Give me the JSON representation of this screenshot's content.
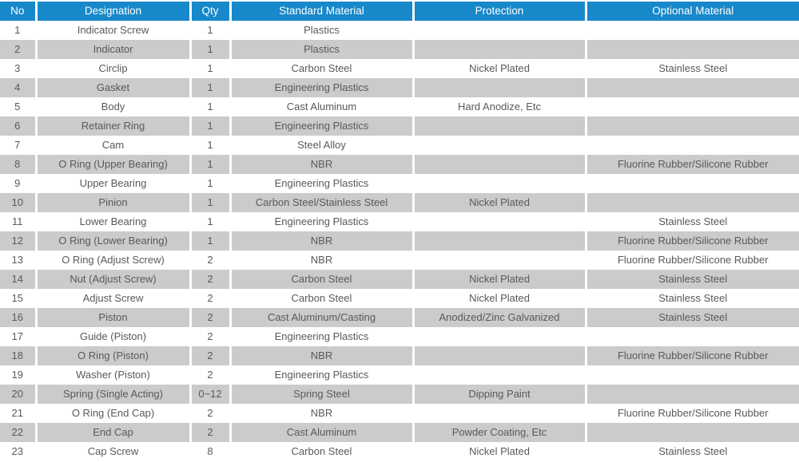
{
  "colors": {
    "header_bg": "#1788c9",
    "header_text": "#ffffff",
    "row_alt_bg": "#cbcbcb",
    "row_bg": "#ffffff",
    "text": "#58595b"
  },
  "table": {
    "columns": [
      {
        "key": "no",
        "label": "No"
      },
      {
        "key": "designation",
        "label": "Designation"
      },
      {
        "key": "qty",
        "label": "Qty"
      },
      {
        "key": "standard_material",
        "label": "Standard Material"
      },
      {
        "key": "protection",
        "label": "Protection"
      },
      {
        "key": "optional_material",
        "label": "Optional Material"
      }
    ],
    "rows": [
      [
        "1",
        "Indicator Screw",
        "1",
        "Plastics",
        "",
        ""
      ],
      [
        "2",
        "Indicator",
        "1",
        "Plastics",
        "",
        ""
      ],
      [
        "3",
        "Circlip",
        "1",
        "Carbon Steel",
        "Nickel Plated",
        "Stainless Steel"
      ],
      [
        "4",
        "Gasket",
        "1",
        "Engineering Plastics",
        "",
        ""
      ],
      [
        "5",
        "Body",
        "1",
        "Cast Aluminum",
        "Hard Anodize, Etc",
        ""
      ],
      [
        "6",
        "Retainer Ring",
        "1",
        "Engineering Plastics",
        "",
        ""
      ],
      [
        "7",
        "Cam",
        "1",
        "Steel Alloy",
        "",
        ""
      ],
      [
        "8",
        "O Ring (Upper Bearing)",
        "1",
        "NBR",
        "",
        "Fluorine Rubber/Silicone Rubber"
      ],
      [
        "9",
        "Upper Bearing",
        "1",
        "Engineering Plastics",
        "",
        ""
      ],
      [
        "10",
        "Pinion",
        "1",
        "Carbon Steel/Stainless Steel",
        "Nickel Plated",
        ""
      ],
      [
        "11",
        "Lower Bearing",
        "1",
        "Engineering Plastics",
        "",
        "Stainless Steel"
      ],
      [
        "12",
        "O Ring (Lower Bearing)",
        "1",
        "NBR",
        "",
        "Fluorine Rubber/Silicone Rubber"
      ],
      [
        "13",
        "O Ring (Adjust Screw)",
        "2",
        "NBR",
        "",
        "Fluorine Rubber/Silicone Rubber"
      ],
      [
        "14",
        "Nut (Adjust Screw)",
        "2",
        "Carbon Steel",
        "Nickel Plated",
        "Stainless Steel"
      ],
      [
        "15",
        "Adjust Screw",
        "2",
        "Carbon Steel",
        "Nickel Plated",
        "Stainless Steel"
      ],
      [
        "16",
        "Piston",
        "2",
        "Cast Aluminum/Casting",
        "Anodized/Zinc Galvanized",
        "Stainless Steel"
      ],
      [
        "17",
        "Guide (Piston)",
        "2",
        "Engineering Plastics",
        "",
        ""
      ],
      [
        "18",
        "O Ring (Piston)",
        "2",
        "NBR",
        "",
        "Fluorine Rubber/Silicone Rubber"
      ],
      [
        "19",
        "Washer (Piston)",
        "2",
        "Engineering Plastics",
        "",
        ""
      ],
      [
        "20",
        "Spring (Single Acting)",
        "0~12",
        "Spring Steel",
        "Dipping Paint",
        ""
      ],
      [
        "21",
        "O Ring (End Cap)",
        "2",
        "NBR",
        "",
        "Fluorine Rubber/Silicone Rubber"
      ],
      [
        "22",
        "End Cap",
        "2",
        "Cast Aluminum",
        "Powder Coating, Etc",
        ""
      ],
      [
        "23",
        "Cap Screw",
        "8",
        "Carbon Steel",
        "Nickel Plated",
        "Stainless Steel"
      ]
    ]
  }
}
